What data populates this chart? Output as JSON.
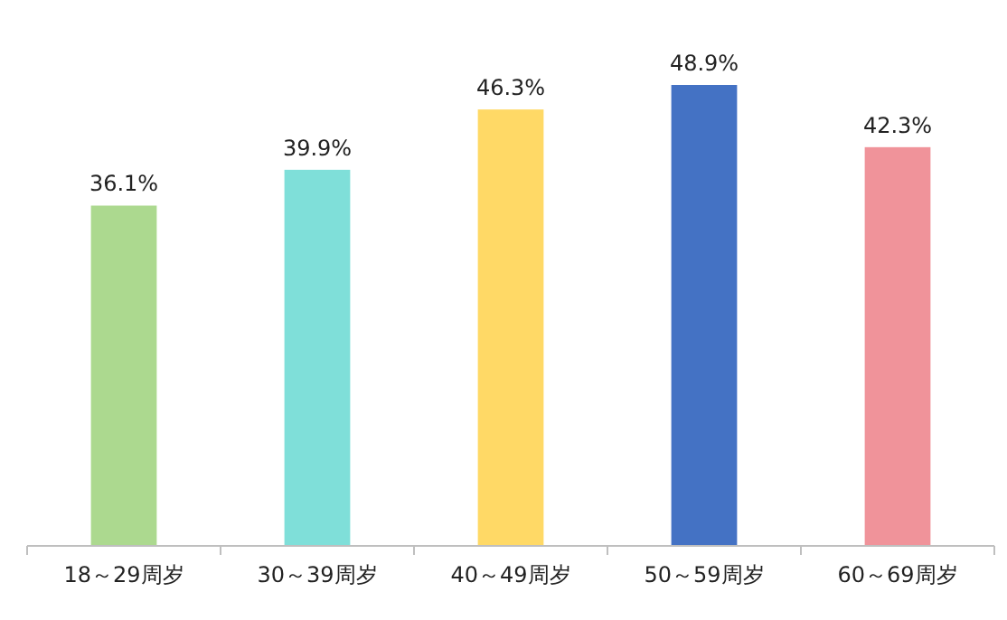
{
  "chart_data": {
    "type": "bar",
    "categories": [
      "18～29周岁",
      "30～39周岁",
      "40～49周岁",
      "50～59周岁",
      "60～69周岁"
    ],
    "values": [
      36.1,
      39.9,
      46.3,
      48.9,
      42.3
    ],
    "colors": [
      "#acd98f",
      "#7fdfd9",
      "#ffd966",
      "#4472c4",
      "#f0939a"
    ],
    "value_labels": [
      "36.1%",
      "39.9%",
      "46.3%",
      "48.9%",
      "42.3%"
    ],
    "tick_labels": "x"
  }
}
